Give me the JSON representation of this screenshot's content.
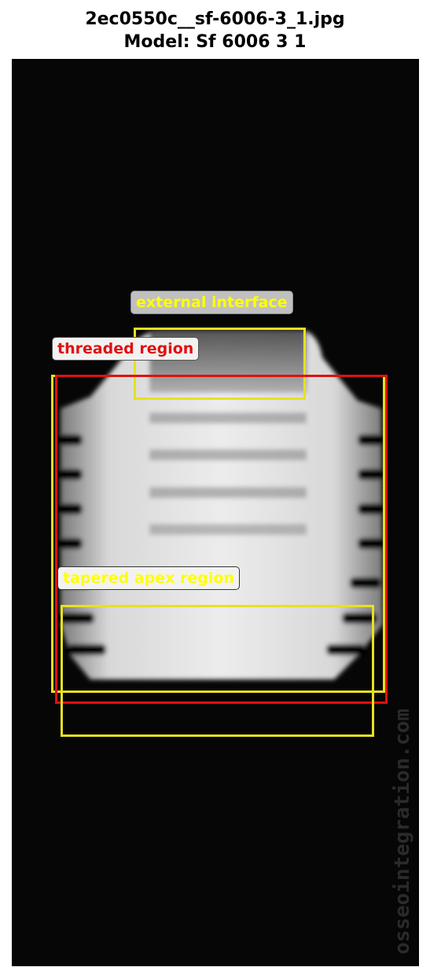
{
  "header": {
    "title": "2ec0550c__sf-6006-3_1.jpg",
    "subtitle": "Model: Sf 6006 3 1"
  },
  "annotations": [
    {
      "label": "external interface",
      "color": "#ffff00",
      "label_bg": "#c0c0c0"
    },
    {
      "label": "threaded region",
      "color": "#e01010",
      "label_bg": "#f2f2f0"
    },
    {
      "label": "tapered apex region",
      "color": "#ffff00",
      "label_bg": "#f2f2f0"
    }
  ],
  "colors": {
    "yellow_box": "#e8e020",
    "red_box": "#e01010",
    "background": "#060606"
  },
  "image_text": {
    "watermark": "osseointegration.com"
  }
}
